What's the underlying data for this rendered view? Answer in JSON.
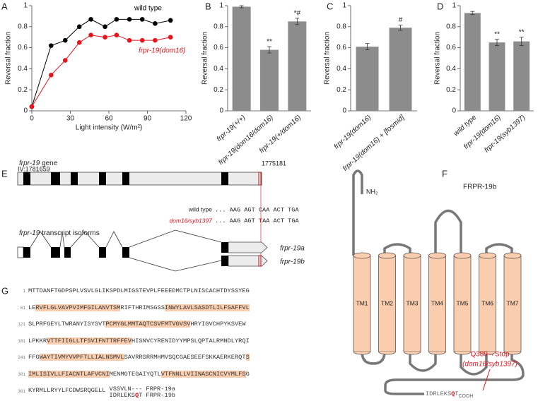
{
  "panels": [
    "A",
    "B",
    "C",
    "D",
    "E",
    "F",
    "G"
  ],
  "chart_data": [
    {
      "type": "line",
      "ylabel": "Reversal fraction",
      "xlabel": "Light intensity (W/m²)",
      "x": [
        0,
        15,
        26,
        37,
        46,
        57,
        66,
        76,
        86,
        96,
        108
      ],
      "series": [
        {
          "name": "wild type",
          "color": "#000000",
          "values": [
            0.04,
            0.62,
            0.67,
            0.8,
            0.87,
            0.8,
            0.87,
            0.87,
            0.87,
            0.83,
            0.86
          ]
        },
        {
          "name": "frpr-19(dom16)",
          "color": "#e8141c",
          "values": [
            0.04,
            0.34,
            0.48,
            0.65,
            0.72,
            0.7,
            0.72,
            0.67,
            0.67,
            0.67,
            0.7
          ]
        }
      ],
      "xlim": [
        0,
        120
      ],
      "xticks": [
        0,
        30,
        60,
        90,
        120
      ],
      "ylim": [
        0,
        1
      ],
      "yticks": [
        0,
        0.2,
        0.4,
        0.6,
        0.8,
        1
      ]
    },
    {
      "type": "bar",
      "ylabel": "Reversal fraction",
      "categories": [
        "frpr-19(+/+)",
        "frpr-19(dom16/dom16)",
        "frpr-19(+/dom16)"
      ],
      "values": [
        0.99,
        0.58,
        0.85
      ],
      "errors": [
        0.01,
        0.03,
        0.03
      ],
      "annotations": [
        null,
        "**",
        "*#"
      ],
      "color": "#8c8c8c",
      "ylim": [
        0,
        1
      ],
      "yticks": [
        0,
        0.2,
        0.4,
        0.6,
        0.8,
        1
      ]
    },
    {
      "type": "bar",
      "ylabel": "Reversal fraction",
      "categories": [
        "frpr-19(dom16)",
        "frpr-19(dom16) + [fosmid]"
      ],
      "values": [
        0.61,
        0.79
      ],
      "errors": [
        0.03,
        0.025
      ],
      "annotations": [
        null,
        "#"
      ],
      "color": "#8c8c8c",
      "ylim": [
        0,
        1
      ],
      "yticks": [
        0,
        0.2,
        0.4,
        0.6,
        0.8,
        1
      ]
    },
    {
      "type": "bar",
      "ylabel": "Reversal fraction",
      "categories": [
        "wild type",
        "frpr-19(dom16)",
        "frpr-19(syb1397)"
      ],
      "values": [
        0.93,
        0.65,
        0.66
      ],
      "errors": [
        0.015,
        0.03,
        0.04
      ],
      "annotations": [
        null,
        "**",
        "**"
      ],
      "color": "#8c8c8c",
      "ylim": [
        0,
        1
      ],
      "yticks": [
        0,
        0.2,
        0.4,
        0.6,
        0.8,
        1
      ]
    }
  ],
  "gene": {
    "name": "frpr-19",
    "gene_label": "gene",
    "start": "IV:1781659",
    "end": "1775181",
    "wild_type_label": "wild type",
    "wild_type_seq": "... AAG AGT CAA ACT TGA",
    "mutant_label": "dom16/syb1397",
    "mutant_seq": [
      "... AAG AGT ",
      "T",
      "AA ACT TGA"
    ],
    "isoforms_label": "transcript isoforms",
    "isoforms": [
      "frpr-19a",
      "frpr-19b"
    ]
  },
  "protein": {
    "title": "FRPR-19b",
    "n_term": "NH₂",
    "tm": [
      "TM1",
      "TM2",
      "TM3",
      "TM4",
      "TM5",
      "TM6",
      "TM7"
    ],
    "mutation": "Q389→Stop",
    "allele": "(dom16/syb1397)",
    "c_term": [
      "IDRLEKS",
      "Q",
      "T"
    ],
    "c_term_label": "COOH"
  },
  "sequence": {
    "rows": [
      {
        "number": 1,
        "segments": [
          {
            "text": "MTTDANFTGDPSPLVSVLGLIKSPDLMIGSTEVPLFEEEDMCTPLNISCACHTDYSSYEG",
            "tm": false
          }
        ]
      },
      {
        "number": 61,
        "segments": [
          {
            "text": "LE",
            "tm": false
          },
          {
            "text": "RVFLGLVAVPVIMFGILANVTSM",
            "tm": true
          },
          {
            "text": "RIFTHRIMSGSS",
            "tm": false
          },
          {
            "text": "INWYLAVLSASDTLILFSAFFVL",
            "tm": true
          }
        ]
      },
      {
        "number": 121,
        "segments": [
          {
            "text": "SLPRFGEYLTWRANYISYSVT",
            "tm": false
          },
          {
            "text": "PCMYGLMMTAQTCSVFMTVGVSV",
            "tm": true
          },
          {
            "text": "HRYIGVCHPYKSVEW",
            "tm": false
          }
        ]
      },
      {
        "number": 181,
        "segments": [
          {
            "text": "LPKKR",
            "tm": false
          },
          {
            "text": "VTTFIIGLLTFSVIFNTTRFFEV",
            "tm": true
          },
          {
            "text": "HISNVCYRENIDYYMPSLQPTALRMNDLYRQI",
            "tm": false
          }
        ]
      },
      {
        "number": 241,
        "segments": [
          {
            "text": "FFG",
            "tm": false
          },
          {
            "text": "WAYTIVMYVVPFTLLIALNSMVL",
            "tm": true
          },
          {
            "text": "SAVRRSRRMHMVSQCGAESEEFSKKAERKERQT",
            "tm": false
          },
          {
            "text": "S",
            "tm": true
          }
        ]
      },
      {
        "number": 301,
        "segments": [
          {
            "text": "IMLISIVLLFIACNTLAFVCNI",
            "tm": true
          },
          {
            "text": "MENMGTEGAIYQTL",
            "tm": false
          },
          {
            "text": "VTFNNLLVIINASCNICVYMLFS",
            "tm": true
          },
          {
            "text": "G",
            "tm": false
          }
        ]
      },
      {
        "number": 361,
        "segments": [
          {
            "text": "KYRMLLRYYLFCDWSRQGELL",
            "tm": false
          }
        ]
      }
    ],
    "isoforms": [
      {
        "seq": [
          {
            "text": "VSSVLN---",
            "mutant": false
          }
        ],
        "name": "FRPR-19a"
      },
      {
        "seq": [
          {
            "text": "IDRLEKS",
            "mutant": false
          },
          {
            "text": "Q",
            "mutant": true
          },
          {
            "text": "T",
            "mutant": false
          }
        ],
        "name": "FRPR-19b"
      }
    ]
  }
}
